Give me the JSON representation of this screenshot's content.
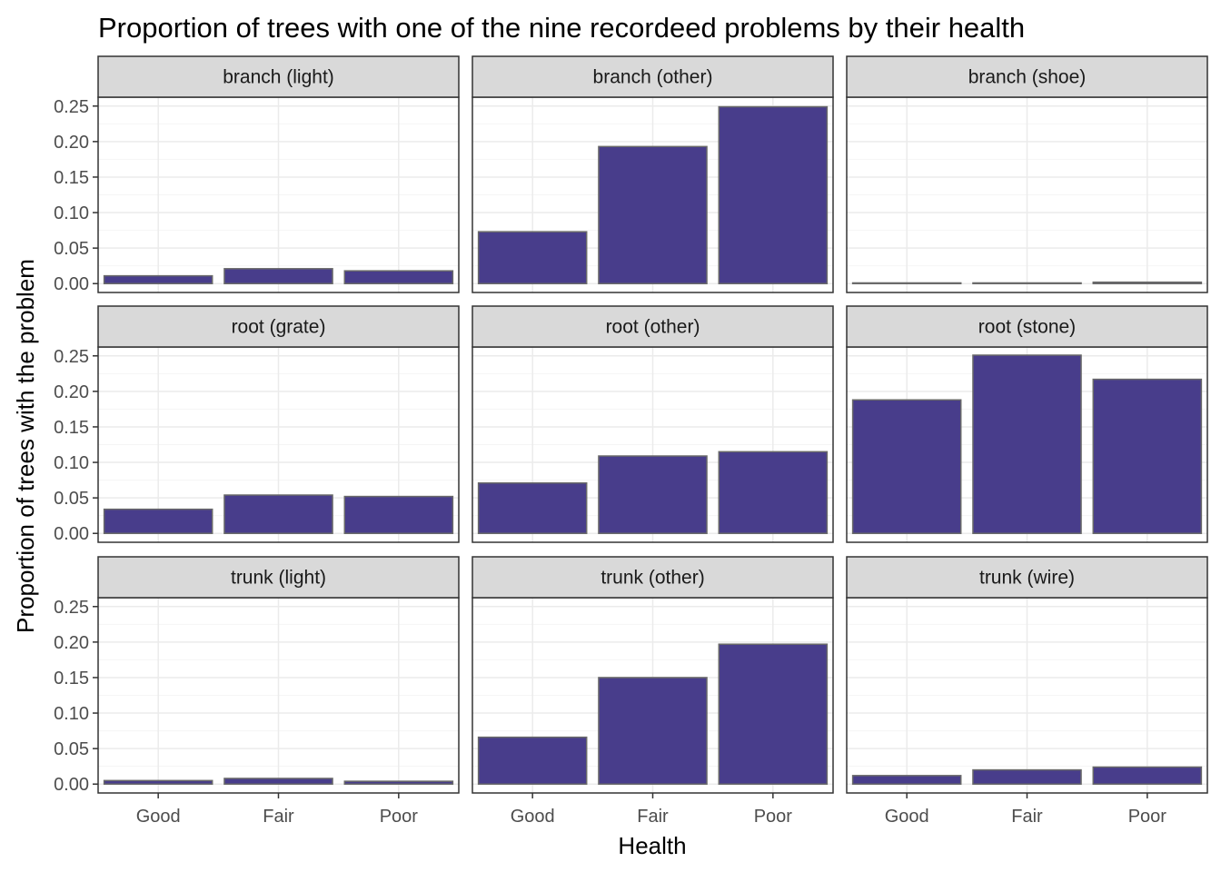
{
  "chart_data": {
    "type": "bar",
    "title": "Proportion of trees with one of the nine recordeed problems by their health",
    "xlabel": "Health",
    "ylabel": "Proportion of trees with the problem",
    "categories": [
      "Good",
      "Fair",
      "Poor"
    ],
    "yticks": [
      "0.00",
      "0.05",
      "0.10",
      "0.15",
      "0.20",
      "0.25"
    ],
    "ylim": [
      -0.0125,
      0.2625
    ],
    "grid": true,
    "legend": "none",
    "colors": {
      "bar_fill": "#483D8B",
      "bar_outline": "#696969",
      "strip_fill": "#D9D9D9",
      "grid_major": "#EBEBEB",
      "grid_minor": "#F5F5F5",
      "panel_border": "#333333"
    },
    "facets": [
      {
        "name": "branch (light)",
        "values": [
          0.011,
          0.021,
          0.018
        ]
      },
      {
        "name": "branch (other)",
        "values": [
          0.073,
          0.193,
          0.249
        ]
      },
      {
        "name": "branch (shoe)",
        "values": [
          0.001,
          0.001,
          0.002
        ]
      },
      {
        "name": "root (grate)",
        "values": [
          0.034,
          0.054,
          0.052
        ]
      },
      {
        "name": "root (other)",
        "values": [
          0.071,
          0.109,
          0.115
        ]
      },
      {
        "name": "root (stone)",
        "values": [
          0.188,
          0.251,
          0.217
        ]
      },
      {
        "name": "trunk (light)",
        "values": [
          0.005,
          0.008,
          0.004
        ]
      },
      {
        "name": "trunk (other)",
        "values": [
          0.066,
          0.15,
          0.197
        ]
      },
      {
        "name": "trunk (wire)",
        "values": [
          0.012,
          0.02,
          0.024
        ]
      }
    ]
  }
}
